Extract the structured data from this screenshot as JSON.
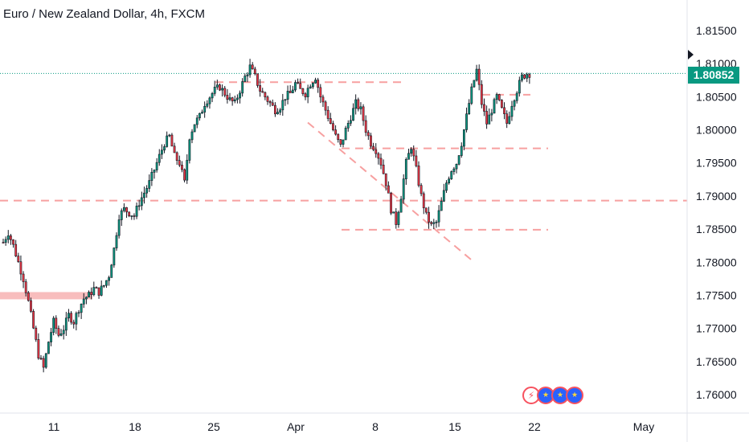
{
  "header": {
    "title": "Euro / New Zealand Dollar, 4h, FXCM"
  },
  "price_tag": {
    "value": "1.80852",
    "color": "#089981"
  },
  "events": [
    {
      "icon": "lightning-icon",
      "glyph": "⚡"
    },
    {
      "icon": "eu-flag-icon",
      "glyph": "★"
    },
    {
      "icon": "eu-flag-icon",
      "glyph": "★"
    },
    {
      "icon": "eu-flag-icon",
      "glyph": "★"
    }
  ],
  "chart_data": {
    "type": "candlestick",
    "title": "Euro / New Zealand Dollar, 4h, FXCM",
    "x_ticks": [
      "11",
      "18",
      "25",
      "Apr",
      "8",
      "15",
      "22",
      "May"
    ],
    "y_ticks": [
      "1.81500",
      "1.81000",
      "1.80500",
      "1.80000",
      "1.79500",
      "1.79000",
      "1.78500",
      "1.78000",
      "1.77500",
      "1.77000",
      "1.76500",
      "1.76000"
    ],
    "ylim": [
      1.7565,
      1.8185
    ],
    "last_price": 1.80852,
    "colors": {
      "up": "#089981",
      "down": "#f23645",
      "body": "#131722",
      "level": "#f7a0a0"
    },
    "horizontal_levels": [
      {
        "price": 1.7893,
        "style": "dashed",
        "extent": "full"
      },
      {
        "price": 1.7849,
        "style": "dashed",
        "extent": "partial"
      },
      {
        "price": 1.7972,
        "style": "dashed",
        "extent": "partial"
      },
      {
        "price": 1.8072,
        "style": "dashed",
        "extent": "partial"
      },
      {
        "price": 1.8053,
        "style": "dashed",
        "extent": "partial"
      },
      {
        "price": 1.775,
        "style": "zone",
        "extent": "left"
      }
    ],
    "trendline": {
      "from": [
        1.8011
      ],
      "to": [
        1.78
      ],
      "style": "dashed"
    },
    "price_path": [
      1.783,
      1.7845,
      1.7825,
      1.78,
      1.7775,
      1.774,
      1.77,
      1.766,
      1.764,
      1.768,
      1.771,
      1.769,
      1.77,
      1.772,
      1.771,
      1.773,
      1.7745,
      1.775,
      1.776,
      1.7755,
      1.7765,
      1.778,
      1.782,
      1.787,
      1.788,
      1.7875,
      1.787,
      1.789,
      1.7905,
      1.792,
      1.794,
      1.796,
      1.798,
      1.799,
      1.796,
      1.795,
      1.792,
      1.799,
      1.801,
      1.802,
      1.804,
      1.805,
      1.806,
      1.8065,
      1.8055,
      1.8045,
      1.804,
      1.806,
      1.808,
      1.8095,
      1.808,
      1.806,
      1.805,
      1.804,
      1.803,
      1.8035,
      1.805,
      1.8055,
      1.807,
      1.806,
      1.8055,
      1.807,
      1.808,
      1.805,
      1.803,
      1.801,
      1.799,
      1.7975,
      1.8,
      1.802,
      1.804,
      1.803,
      1.8,
      1.798,
      1.797,
      1.795,
      1.792,
      1.788,
      1.786,
      1.79,
      1.795,
      1.7975,
      1.794,
      1.79,
      1.787,
      1.7855,
      1.786,
      1.789,
      1.792,
      1.794,
      1.795,
      1.798,
      1.802,
      1.806,
      1.809,
      1.804,
      1.801,
      1.803,
      1.805,
      1.803,
      1.801,
      1.804,
      1.806,
      1.808,
      1.8085
    ]
  }
}
